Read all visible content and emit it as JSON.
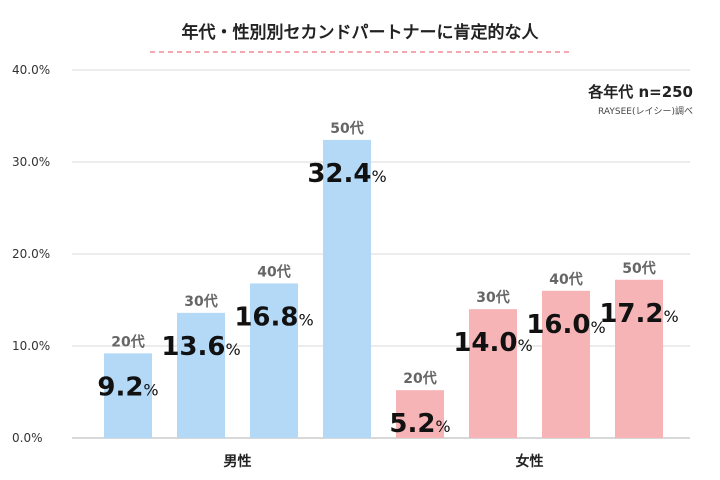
{
  "chart_data": {
    "type": "bar",
    "title": "年代・性別別セカンドパートナーに肯定的な人",
    "sample_note": "各年代 n=250",
    "source_note": "RAYSEE(レイシー)調べ",
    "ylim": [
      0,
      40
    ],
    "y_ticks": [
      "0.0%",
      "10.0%",
      "20.0%",
      "30.0%",
      "40.0%"
    ],
    "unit": "%",
    "groups": [
      {
        "name": "男性",
        "color": "#b3d9f7",
        "bars": [
          {
            "label": "20代",
            "value": 9.2,
            "value_text": "9.2"
          },
          {
            "label": "30代",
            "value": 13.6,
            "value_text": "13.6"
          },
          {
            "label": "40代",
            "value": 16.8,
            "value_text": "16.8"
          },
          {
            "label": "50代",
            "value": 32.4,
            "value_text": "32.4"
          }
        ]
      },
      {
        "name": "女性",
        "color": "#f7b4b7",
        "bars": [
          {
            "label": "20代",
            "value": 5.2,
            "value_text": "5.2"
          },
          {
            "label": "30代",
            "value": 14.0,
            "value_text": "14.0"
          },
          {
            "label": "40代",
            "value": 16.0,
            "value_text": "16.0"
          },
          {
            "label": "50代",
            "value": 17.2,
            "value_text": "17.2"
          }
        ]
      }
    ],
    "colors": {
      "title_underline": "#f28b95",
      "grid": "#d9d9d9",
      "axis_text": "#333333",
      "category_label": "#666666"
    }
  }
}
